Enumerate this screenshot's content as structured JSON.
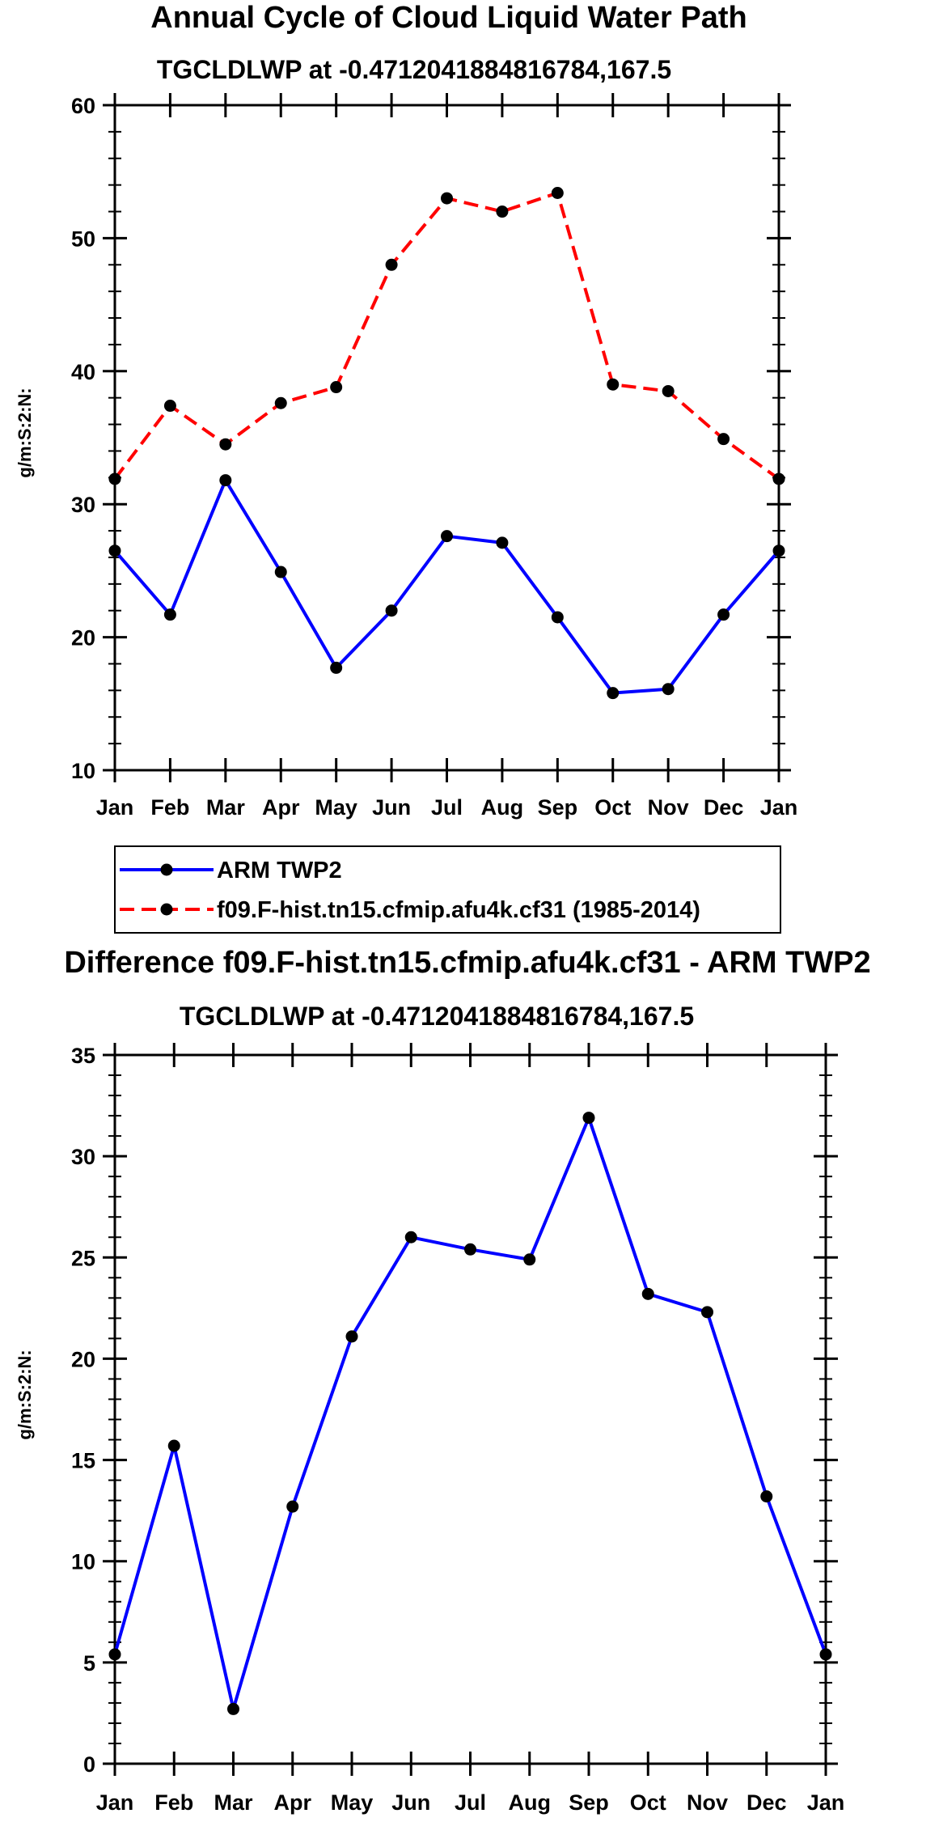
{
  "chart_data": [
    {
      "type": "line",
      "title": "Annual Cycle of Cloud Liquid Water Path",
      "subtitle": "TGCLDLWP at -0.4712041884816784,167.5",
      "ylabel": "g/m:S:2:N:",
      "xlabel": "",
      "categories": [
        "Jan",
        "Feb",
        "Mar",
        "Apr",
        "May",
        "Jun",
        "Jul",
        "Aug",
        "Sep",
        "Oct",
        "Nov",
        "Dec",
        "Jan"
      ],
      "ylim": [
        10,
        60
      ],
      "yticks": [
        10,
        20,
        30,
        40,
        50,
        60
      ],
      "series": [
        {
          "name": "ARM TWP2",
          "color": "#0000ff",
          "dashed": false,
          "values": [
            26.5,
            21.7,
            31.8,
            24.9,
            17.7,
            22.0,
            27.6,
            27.1,
            21.5,
            15.8,
            16.1,
            21.7,
            26.5
          ]
        },
        {
          "name": "f09.F-hist.tn15.cfmip.afu4k.cf31 (1985-2014)",
          "color": "#ff0000",
          "dashed": true,
          "values": [
            31.9,
            37.4,
            34.5,
            37.6,
            38.8,
            48.0,
            53.0,
            52.0,
            53.4,
            39.0,
            38.5,
            34.9,
            31.9
          ]
        }
      ],
      "legend": [
        {
          "label": "ARM TWP2",
          "color": "#0000ff",
          "dashed": false
        },
        {
          "label": "f09.F-hist.tn15.cfmip.afu4k.cf31 (1985-2014)",
          "color": "#ff0000",
          "dashed": true
        }
      ]
    },
    {
      "type": "line",
      "title": "Difference f09.F-hist.tn15.cfmip.afu4k.cf31 - ARM TWP2",
      "subtitle": "TGCLDLWP at -0.4712041884816784,167.5",
      "ylabel": "g/m:S:2:N:",
      "xlabel": "",
      "categories": [
        "Jan",
        "Feb",
        "Mar",
        "Apr",
        "May",
        "Jun",
        "Jul",
        "Aug",
        "Sep",
        "Oct",
        "Nov",
        "Dec",
        "Jan"
      ],
      "ylim": [
        0,
        35
      ],
      "yticks": [
        0,
        5,
        10,
        15,
        20,
        25,
        30,
        35
      ],
      "series": [
        {
          "name": "Difference",
          "color": "#0000ff",
          "dashed": false,
          "values": [
            5.4,
            15.7,
            2.7,
            12.7,
            21.1,
            26.0,
            25.4,
            24.9,
            31.9,
            23.2,
            22.3,
            13.2,
            5.4
          ]
        }
      ]
    }
  ]
}
